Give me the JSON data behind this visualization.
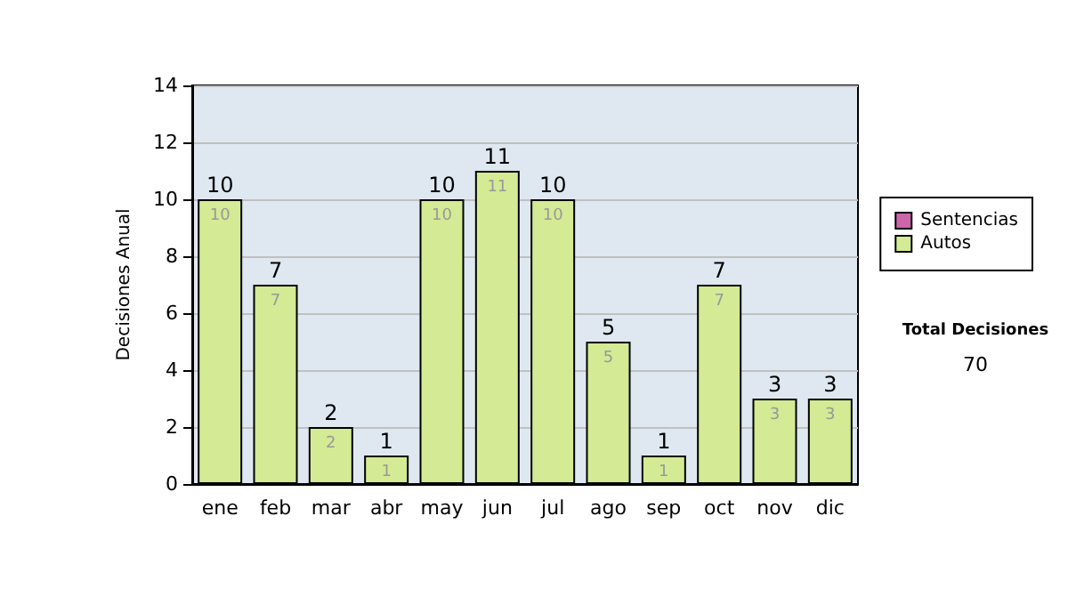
{
  "chart_data": {
    "type": "bar",
    "ylabel": "Decisiones Anual",
    "categories": [
      "ene",
      "feb",
      "mar",
      "abr",
      "may",
      "jun",
      "jul",
      "ago",
      "sep",
      "oct",
      "nov",
      "dic"
    ],
    "series": [
      {
        "name": "Sentencias",
        "color": "#cc66aa",
        "values": [
          0,
          0,
          0,
          0,
          0,
          0,
          0,
          0,
          0,
          0,
          0,
          0
        ]
      },
      {
        "name": "Autos",
        "color": "#d4ea94",
        "values": [
          10,
          7,
          2,
          1,
          10,
          11,
          10,
          5,
          1,
          7,
          3,
          3
        ],
        "value_labels": [
          "10",
          "7",
          "2",
          "1",
          "10",
          "11",
          "10",
          "5",
          "1",
          "7",
          "3",
          "3"
        ]
      }
    ],
    "stacked": true,
    "totals": [
      "10",
      "7",
      "2",
      "1",
      "10",
      "11",
      "10",
      "5",
      "1",
      "7",
      "3",
      "3"
    ],
    "ylim": [
      0,
      14
    ],
    "yticks": [
      0,
      2,
      4,
      6,
      8,
      10,
      12,
      14
    ],
    "grid": "y",
    "legend": "right",
    "annotations": [
      "Total Decisiones",
      "70"
    ]
  }
}
